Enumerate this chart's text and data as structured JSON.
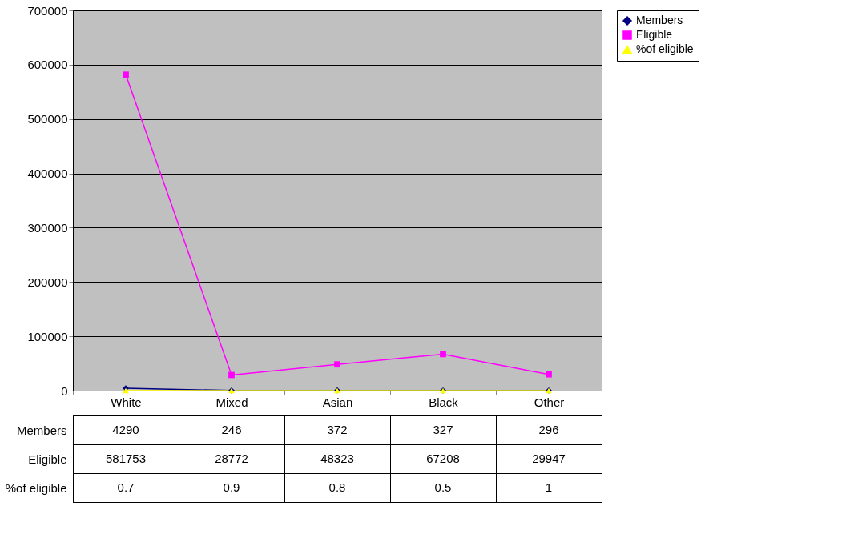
{
  "chart_data": {
    "type": "line",
    "categories": [
      "White",
      "Mixed",
      "Asian",
      "Black",
      "Other"
    ],
    "series": [
      {
        "name": "Members",
        "color": "#000080",
        "marker": "diamond",
        "values": [
          4290,
          246,
          372,
          327,
          296
        ]
      },
      {
        "name": "Eligible",
        "color": "#ff00ff",
        "marker": "square",
        "values": [
          581753,
          28772,
          48323,
          67208,
          29947
        ]
      },
      {
        "name": "%of eligible",
        "color": "#ffff00",
        "marker": "triangle",
        "values": [
          0.7,
          0.9,
          0.8,
          0.5,
          1
        ]
      }
    ],
    "ylim": [
      0,
      700000
    ],
    "yticks": [
      0,
      100000,
      200000,
      300000,
      400000,
      500000,
      600000,
      700000
    ],
    "grid": "y",
    "legend": "right",
    "data_labels": true
  }
}
